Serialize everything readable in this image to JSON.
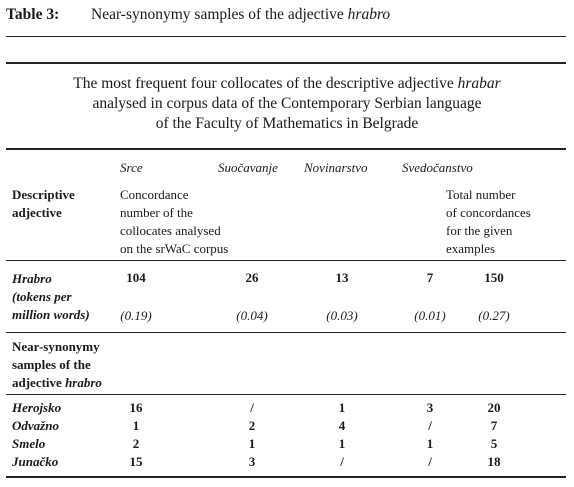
{
  "caption": {
    "label": "Table 3:",
    "text_pre": "Near-synonymy samples of the adjective ",
    "text_em": "hrabro"
  },
  "title": {
    "line1_pre": "The most frequent four collocates of the descriptive adjective ",
    "line1_em": "hrabar",
    "line2": "analysed in corpus data of the Contemporary Serbian language",
    "line3": "of the Faculty of Mathematics in Belgrade"
  },
  "columns": [
    "Srce",
    "Suočavanje",
    "Novinarstvo",
    "Svedočanstvo"
  ],
  "descriptive": {
    "label_l1": "Descriptive",
    "label_l2": "adjective",
    "concordance_l1": "Concordance",
    "concordance_l2": "number of the",
    "concordance_l3": "collocates analysed",
    "concordance_l4": "on the srWaC corpus",
    "total_l1": "Total number",
    "total_l2": "of concordances",
    "total_l3": "for the given",
    "total_l4": "examples"
  },
  "hrabro": {
    "label": "Hrabro",
    "sub_l1": "(tokens per",
    "sub_l2": "million words)",
    "values": [
      "104",
      "26",
      "13",
      "7",
      "150"
    ],
    "per_million": [
      "(0.19)",
      "(0.04)",
      "(0.03)",
      "(0.01)",
      "(0.27)"
    ]
  },
  "near": {
    "l1": "Near-synonymy",
    "l2": "samples of the",
    "l3_pre": "adjective ",
    "l3_em": "hrabro"
  },
  "rows": [
    {
      "label": "Herojsko",
      "values": [
        "16",
        "/",
        "1",
        "3",
        "20"
      ]
    },
    {
      "label": "Odvažno",
      "values": [
        "1",
        "2",
        "4",
        "/",
        "7"
      ]
    },
    {
      "label": "Smelo",
      "values": [
        "2",
        "1",
        "1",
        "1",
        "5"
      ]
    },
    {
      "label": "Junačko",
      "values": [
        "15",
        "3",
        "/",
        "/",
        "18"
      ]
    }
  ]
}
